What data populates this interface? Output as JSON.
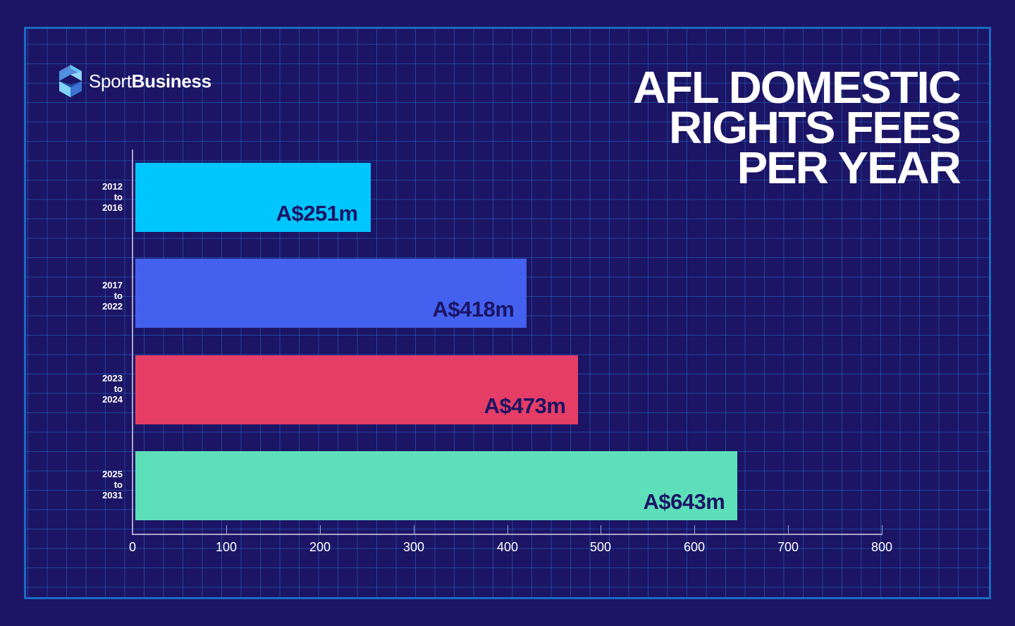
{
  "brand": {
    "logo_icon": "sportbusiness-cube-icon",
    "name_regular": "Sport",
    "name_bold": "Business"
  },
  "title_lines": [
    "AFL DOMESTIC",
    "RIGHTS FEES",
    "PER YEAR"
  ],
  "colors": {
    "background": "#1c1464",
    "grid": "#1a6bc2",
    "axis": "#a9a4cf",
    "bar_colors": [
      "#00c6ff",
      "#4361ee",
      "#e63d66",
      "#5ddfba"
    ],
    "value_text": "#1c1464"
  },
  "bars": [
    {
      "period_start": "2012",
      "period_to": "to",
      "period_end": "2016",
      "value": 251,
      "label": "A$251m",
      "color": "#00c6ff"
    },
    {
      "period_start": "2017",
      "period_to": "to",
      "period_end": "2022",
      "value": 418,
      "label": "A$418m",
      "color": "#4361ee"
    },
    {
      "period_start": "2023",
      "period_to": "to",
      "period_end": "2024",
      "value": 473,
      "label": "A$473m",
      "color": "#e63d66"
    },
    {
      "period_start": "2025",
      "period_to": "to",
      "period_end": "2031",
      "value": 643,
      "label": "A$643m",
      "color": "#5ddfba"
    }
  ],
  "x_ticks": [
    "0",
    "100",
    "200",
    "300",
    "400",
    "500",
    "600",
    "700",
    "800"
  ],
  "chart_data": {
    "type": "bar",
    "orientation": "horizontal",
    "title": "AFL DOMESTIC RIGHTS FEES PER YEAR",
    "categories": [
      "2012 to 2016",
      "2017 to 2022",
      "2023 to 2024",
      "2025 to 2031"
    ],
    "values": [
      251,
      418,
      473,
      643
    ],
    "data_labels": [
      "A$251m",
      "A$418m",
      "A$473m",
      "A$643m"
    ],
    "xlabel": "",
    "ylabel": "",
    "xlim": [
      0,
      800
    ],
    "x_ticks": [
      0,
      100,
      200,
      300,
      400,
      500,
      600,
      700,
      800
    ],
    "unit": "A$ millions",
    "grid": true,
    "legend": null
  }
}
